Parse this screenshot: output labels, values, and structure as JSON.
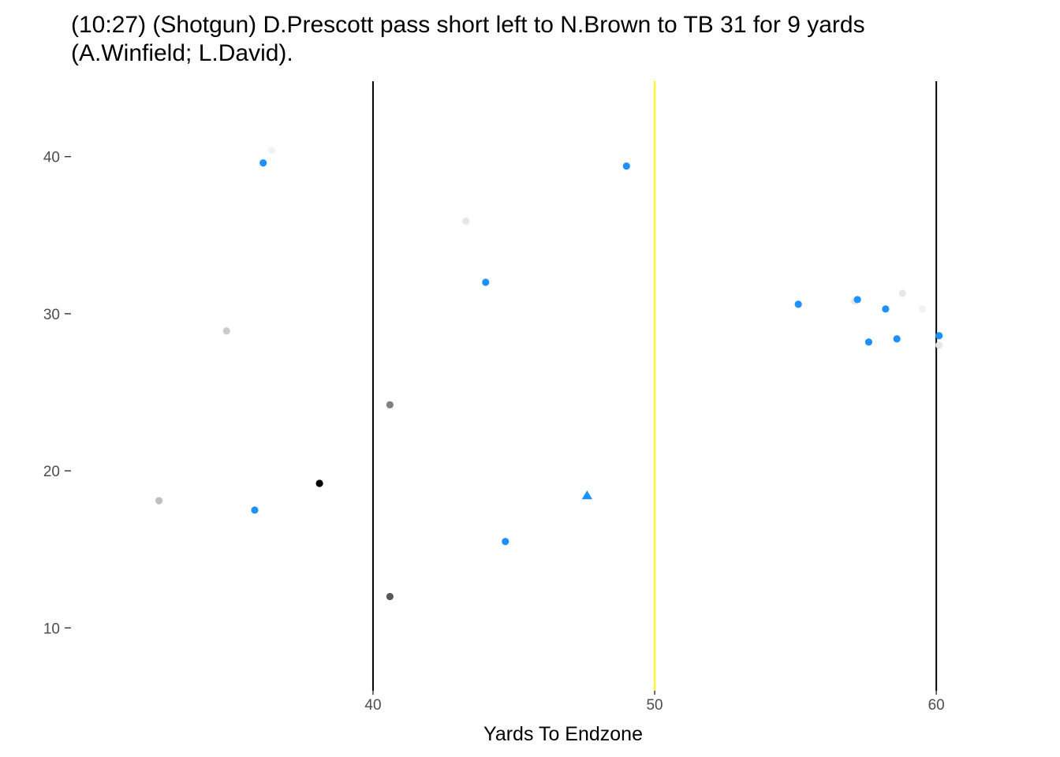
{
  "chart_data": {
    "type": "scatter",
    "title_lines": [
      "(10:27) (Shotgun) D.Prescott pass short left to N.Brown to TB 31 for 9 yards",
      "(A.Winfield; L.David)."
    ],
    "xlabel": "Yards To Endzone",
    "ylabel": "",
    "xlim": [
      29.5,
      64
    ],
    "ylim": [
      6.0,
      44.8
    ],
    "x_ticks": [
      40,
      50,
      60
    ],
    "y_ticks": [
      10,
      20,
      30,
      40
    ],
    "grid": false,
    "vertical_lines": [
      {
        "x": 40,
        "color": "#000000"
      },
      {
        "x": 50,
        "color": "#FFFF00"
      },
      {
        "x": 60,
        "color": "#000000"
      }
    ],
    "points": [
      {
        "x": 36.1,
        "y": 39.6,
        "color": "#1E90FF",
        "shape": "circle"
      },
      {
        "x": 36.4,
        "y": 40.4,
        "color": "#F2F2F2",
        "shape": "circle"
      },
      {
        "x": 34.8,
        "y": 28.9,
        "color": "#CCCCCC",
        "shape": "circle"
      },
      {
        "x": 32.4,
        "y": 18.1,
        "color": "#BFBFBF",
        "shape": "circle"
      },
      {
        "x": 35.8,
        "y": 17.5,
        "color": "#1E90FF",
        "shape": "circle"
      },
      {
        "x": 38.1,
        "y": 19.2,
        "color": "#000000",
        "shape": "circle"
      },
      {
        "x": 40.6,
        "y": 24.2,
        "color": "#808080",
        "shape": "circle"
      },
      {
        "x": 40.6,
        "y": 12.0,
        "color": "#595959",
        "shape": "circle"
      },
      {
        "x": 43.3,
        "y": 35.9,
        "color": "#E6E6E6",
        "shape": "circle"
      },
      {
        "x": 44.0,
        "y": 32.0,
        "color": "#1E90FF",
        "shape": "circle"
      },
      {
        "x": 44.7,
        "y": 15.5,
        "color": "#1E90FF",
        "shape": "circle"
      },
      {
        "x": 47.6,
        "y": 18.4,
        "color": "#1E90FF",
        "shape": "triangle"
      },
      {
        "x": 49.0,
        "y": 39.4,
        "color": "#1E90FF",
        "shape": "circle"
      },
      {
        "x": 55.1,
        "y": 30.6,
        "color": "#1E90FF",
        "shape": "circle"
      },
      {
        "x": 57.1,
        "y": 30.8,
        "color": "#E6E6E6",
        "shape": "circle"
      },
      {
        "x": 57.2,
        "y": 30.9,
        "color": "#1E90FF",
        "shape": "circle"
      },
      {
        "x": 57.6,
        "y": 28.2,
        "color": "#1E90FF",
        "shape": "circle"
      },
      {
        "x": 58.2,
        "y": 30.3,
        "color": "#1E90FF",
        "shape": "circle"
      },
      {
        "x": 58.6,
        "y": 28.4,
        "color": "#1E90FF",
        "shape": "circle"
      },
      {
        "x": 58.8,
        "y": 31.3,
        "color": "#E6E6E6",
        "shape": "circle"
      },
      {
        "x": 59.5,
        "y": 30.3,
        "color": "#F2F2F2",
        "shape": "circle"
      },
      {
        "x": 60.1,
        "y": 28.0,
        "color": "#E6E6E6",
        "shape": "circle"
      },
      {
        "x": 60.1,
        "y": 28.6,
        "color": "#1E90FF",
        "shape": "circle"
      }
    ]
  }
}
